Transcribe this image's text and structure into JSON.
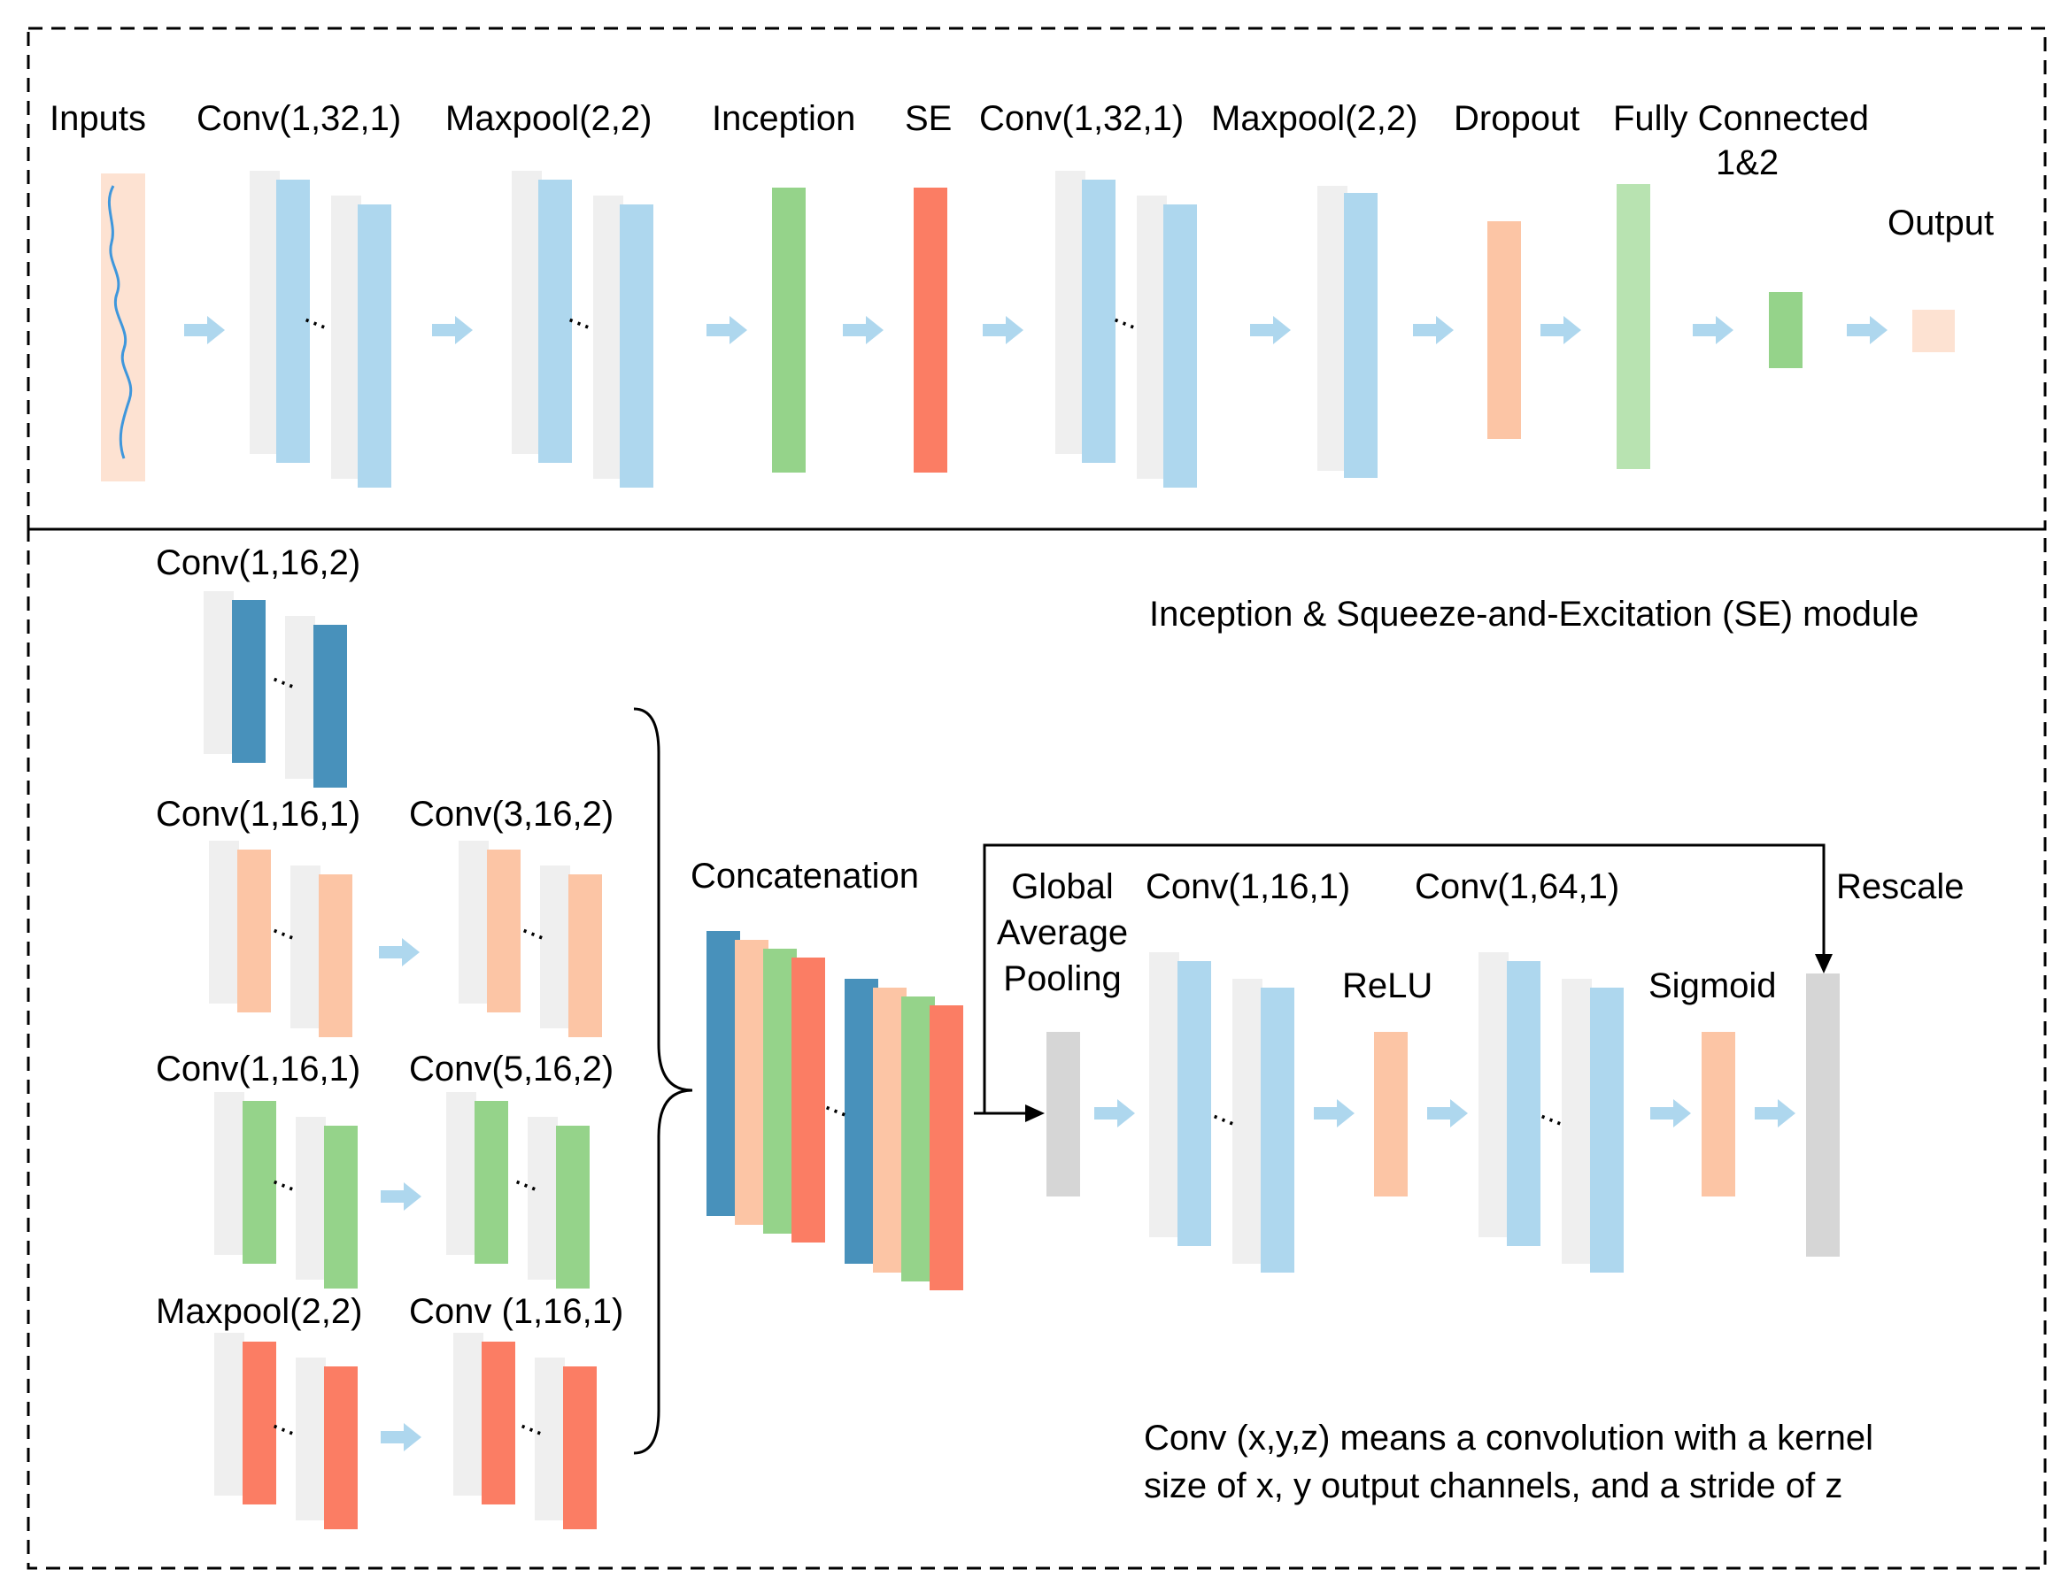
{
  "colors": {
    "light_blue": "#aed7ee",
    "ghost": "#efefef",
    "green": "#95d38a",
    "red": "#fb7d64",
    "peach": "#fcc5a5",
    "dark_blue": "#4891bb",
    "light_green": "#b8e3b1",
    "pale_peach": "#fde2d2",
    "gray": "#d6d6d6",
    "line": "#000000",
    "signal": "#3f97dc"
  },
  "top": {
    "inputs": "Inputs",
    "conv1": "Conv(1,32,1)",
    "maxpool1": "Maxpool(2,2)",
    "inception": "Inception",
    "se": "SE",
    "conv2": "Conv(1,32,1)",
    "maxpool2": "Maxpool(2,2)",
    "dropout": "Dropout",
    "fc": "Fully Connected",
    "fc_sub": "1&2",
    "output": "Output"
  },
  "bottom": {
    "title": "Inception & Squeeze-and-Excitation (SE) module",
    "branch1": "Conv(1,16,2)",
    "branch2_a": "Conv(1,16,1)",
    "branch2_b": "Conv(3,16,2)",
    "branch3_a": "Conv(1,16,1)",
    "branch3_b": "Conv(5,16,2)",
    "branch4_a": "Maxpool(2,2)",
    "branch4_b": "Conv (1,16,1)",
    "concat": "Concatenation",
    "gap_1": "Global",
    "gap_2": "Average",
    "gap_3": "Pooling",
    "se_conv1": "Conv(1,16,1)",
    "se_conv2": "Conv(1,64,1)",
    "relu": "ReLU",
    "sigmoid": "Sigmoid",
    "rescale": "Rescale",
    "note_1": "Conv (x,y,z) means a convolution with a kernel",
    "note_2": "size of x, y output channels, and a stride of z"
  },
  "glyphs": {
    "dots": "..."
  }
}
